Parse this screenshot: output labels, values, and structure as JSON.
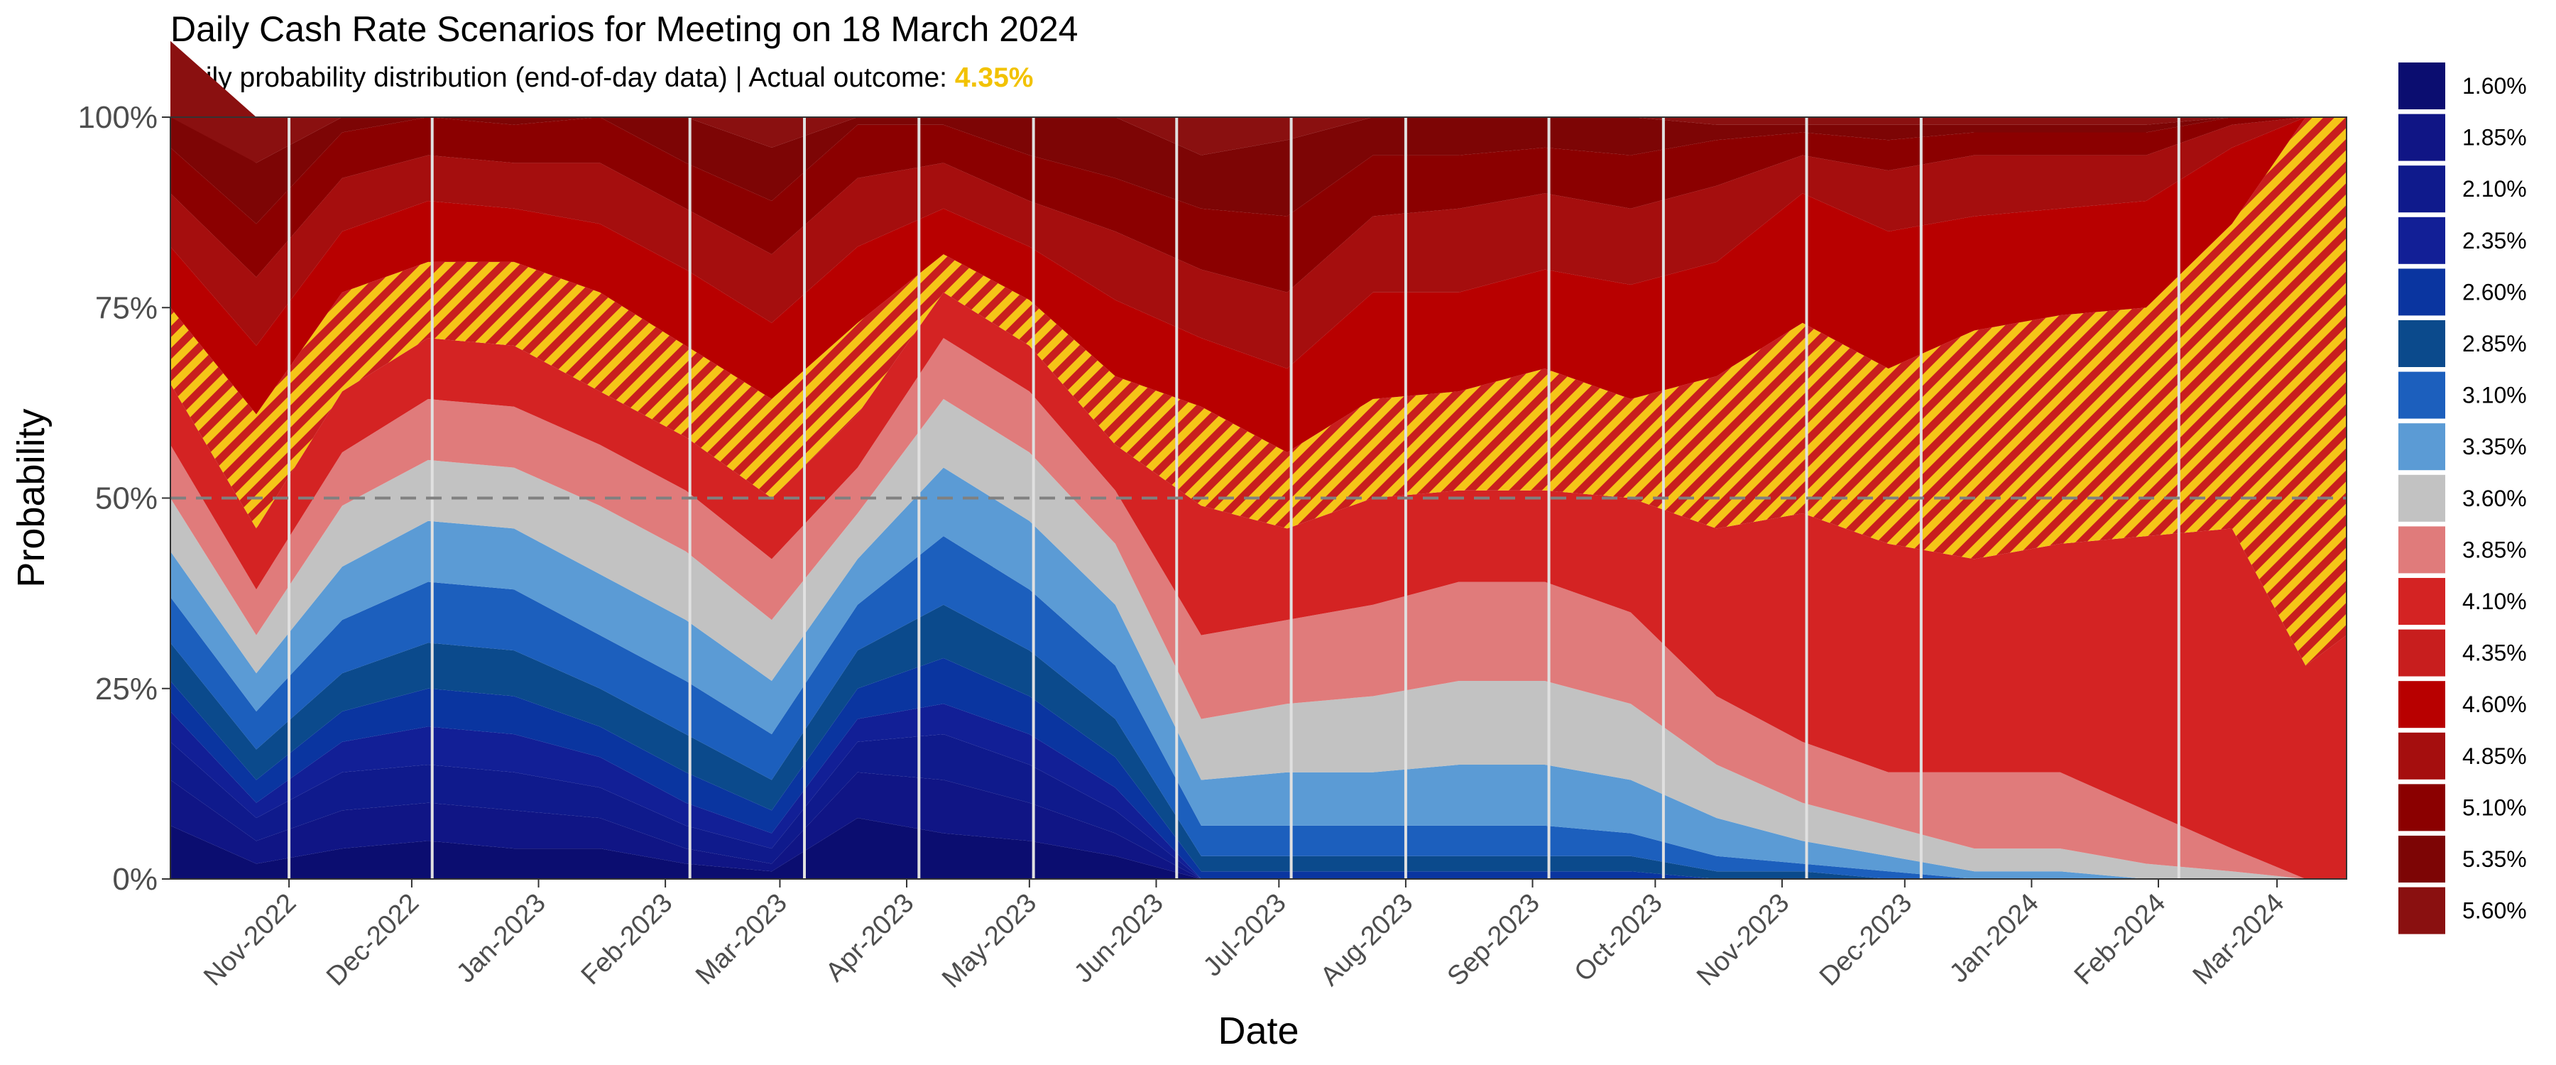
{
  "chart_data": {
    "type": "area",
    "title": "Daily Cash Rate Scenarios for Meeting on 18 March 2024",
    "subtitle_prefix": "Daily probability distribution (end-of-day data) | Actual outcome: ",
    "actual_outcome": "4.35%",
    "xlabel": "Date",
    "ylabel": "Probability",
    "ylim": [
      0,
      1
    ],
    "y_ticks": [
      "0%",
      "25%",
      "50%",
      "75%",
      "100%"
    ],
    "reference_line": 0.5,
    "stacked": true,
    "x_ticks": [
      "Nov-2022",
      "Dec-2022",
      "Jan-2023",
      "Feb-2023",
      "Mar-2023",
      "Apr-2023",
      "May-2023",
      "Jun-2023",
      "Jul-2023",
      "Aug-2023",
      "Sep-2023",
      "Oct-2023",
      "Nov-2023",
      "Dec-2023",
      "Jan-2024",
      "Feb-2024",
      "Mar-2024"
    ],
    "meeting_dates": [
      "2022-11-01",
      "2022-12-06",
      "2023-02-07",
      "2023-03-07",
      "2023-04-04",
      "2023-05-02",
      "2023-06-06",
      "2023-07-04",
      "2023-08-01",
      "2023-09-05",
      "2023-10-03",
      "2023-11-07",
      "2023-12-05",
      "2024-02-06"
    ],
    "legend_position": "right",
    "highlight_pattern": "diagonal gold/red hatching",
    "colors": {
      "outcome_text": "#f2c200",
      "hatch_gold": "#f5c518",
      "reference_line": "#808080",
      "vline": "#e0e0e0"
    },
    "x": [
      "2022-10-03",
      "2022-10-24",
      "2022-11-14",
      "2022-12-05",
      "2022-12-26",
      "2023-01-16",
      "2023-02-06",
      "2023-02-27",
      "2023-03-20",
      "2023-04-10",
      "2023-05-01",
      "2023-05-22",
      "2023-06-12",
      "2023-07-03",
      "2023-07-24",
      "2023-08-14",
      "2023-09-04",
      "2023-09-25",
      "2023-10-16",
      "2023-11-06",
      "2023-11-27",
      "2023-12-18",
      "2024-01-08",
      "2024-01-29",
      "2024-02-19",
      "2024-03-08",
      "2024-03-18"
    ],
    "series": [
      {
        "name": "1.60%",
        "color": "#0b0d70",
        "values": [
          0.07,
          0.02,
          0.04,
          0.05,
          0.04,
          0.04,
          0.02,
          0.01,
          0.08,
          0.06,
          0.05,
          0.03,
          0,
          0,
          0,
          0,
          0,
          0,
          0,
          0,
          0,
          0,
          0,
          0,
          0,
          0,
          0
        ]
      },
      {
        "name": "1.85%",
        "color": "#101585",
        "values": [
          0.06,
          0.03,
          0.05,
          0.05,
          0.05,
          0.04,
          0.02,
          0.01,
          0.06,
          0.07,
          0.05,
          0.03,
          0,
          0,
          0,
          0,
          0,
          0,
          0,
          0,
          0,
          0,
          0,
          0,
          0,
          0,
          0
        ]
      },
      {
        "name": "2.10%",
        "color": "#0f1a8c",
        "values": [
          0.05,
          0.03,
          0.05,
          0.05,
          0.05,
          0.04,
          0.03,
          0.02,
          0.04,
          0.06,
          0.05,
          0.03,
          0,
          0,
          0,
          0,
          0,
          0,
          0,
          0,
          0,
          0,
          0,
          0,
          0,
          0,
          0
        ]
      },
      {
        "name": "2.35%",
        "color": "#121f96",
        "values": [
          0.04,
          0.02,
          0.04,
          0.05,
          0.05,
          0.04,
          0.03,
          0.02,
          0.03,
          0.04,
          0.04,
          0.03,
          0,
          0,
          0,
          0,
          0,
          0,
          0,
          0,
          0,
          0,
          0,
          0,
          0,
          0,
          0
        ]
      },
      {
        "name": "2.60%",
        "color": "#0a35a0",
        "values": [
          0.04,
          0.03,
          0.04,
          0.05,
          0.05,
          0.04,
          0.04,
          0.03,
          0.04,
          0.06,
          0.05,
          0.04,
          0.01,
          0.01,
          0.01,
          0.01,
          0.01,
          0.01,
          0,
          0,
          0,
          0,
          0,
          0,
          0,
          0,
          0
        ]
      },
      {
        "name": "2.85%",
        "color": "#0b4a8c",
        "values": [
          0.05,
          0.04,
          0.05,
          0.06,
          0.06,
          0.05,
          0.05,
          0.04,
          0.05,
          0.07,
          0.06,
          0.05,
          0.02,
          0.02,
          0.02,
          0.02,
          0.02,
          0.02,
          0.01,
          0.01,
          0,
          0,
          0,
          0,
          0,
          0,
          0
        ]
      },
      {
        "name": "3.10%",
        "color": "#1c5fbd",
        "values": [
          0.06,
          0.05,
          0.07,
          0.08,
          0.08,
          0.07,
          0.07,
          0.06,
          0.06,
          0.09,
          0.08,
          0.07,
          0.04,
          0.04,
          0.04,
          0.04,
          0.04,
          0.03,
          0.02,
          0.01,
          0.01,
          0,
          0,
          0,
          0,
          0,
          0
        ]
      },
      {
        "name": "3.35%",
        "color": "#5b9bd5",
        "values": [
          0.06,
          0.05,
          0.07,
          0.08,
          0.08,
          0.08,
          0.08,
          0.07,
          0.06,
          0.09,
          0.09,
          0.08,
          0.06,
          0.07,
          0.07,
          0.08,
          0.08,
          0.07,
          0.05,
          0.03,
          0.02,
          0.01,
          0.01,
          0,
          0,
          0,
          0
        ]
      },
      {
        "name": "3.60%",
        "color": "#c2c2c2",
        "values": [
          0.07,
          0.05,
          0.08,
          0.08,
          0.08,
          0.09,
          0.09,
          0.08,
          0.06,
          0.09,
          0.09,
          0.08,
          0.08,
          0.09,
          0.1,
          0.11,
          0.11,
          0.1,
          0.07,
          0.05,
          0.04,
          0.03,
          0.03,
          0.02,
          0.01,
          0,
          0
        ]
      },
      {
        "name": "3.85%",
        "color": "#e07b7b",
        "values": [
          0.07,
          0.06,
          0.07,
          0.08,
          0.08,
          0.08,
          0.08,
          0.08,
          0.06,
          0.08,
          0.08,
          0.07,
          0.11,
          0.11,
          0.12,
          0.13,
          0.13,
          0.12,
          0.09,
          0.08,
          0.07,
          0.1,
          0.1,
          0.07,
          0.03,
          0,
          0
        ]
      },
      {
        "name": "4.10%",
        "color": "#d42323",
        "values": [
          0.08,
          0.08,
          0.08,
          0.08,
          0.08,
          0.07,
          0.07,
          0.08,
          0.07,
          0.06,
          0.06,
          0.06,
          0.17,
          0.12,
          0.14,
          0.12,
          0.12,
          0.15,
          0.22,
          0.3,
          0.3,
          0.28,
          0.3,
          0.36,
          0.42,
          0.28,
          0.32
        ]
      },
      {
        "name": "4.35%",
        "color": "#c81e1e",
        "values": [
          0.1,
          0.15,
          0.13,
          0.1,
          0.11,
          0.13,
          0.12,
          0.13,
          0.12,
          0.05,
          0.06,
          0.09,
          0.13,
          0.1,
          0.13,
          0.13,
          0.16,
          0.13,
          0.2,
          0.25,
          0.23,
          0.3,
          0.3,
          0.3,
          0.4,
          0.72,
          0.68
        ]
      },
      {
        "name": "4.60%",
        "color": "#b80000",
        "values": [
          0.08,
          0.09,
          0.08,
          0.08,
          0.07,
          0.09,
          0.1,
          0.1,
          0.1,
          0.06,
          0.07,
          0.1,
          0.09,
          0.11,
          0.14,
          0.13,
          0.13,
          0.15,
          0.15,
          0.17,
          0.18,
          0.15,
          0.14,
          0.14,
          0.1,
          0,
          0
        ]
      },
      {
        "name": "4.85%",
        "color": "#a50e0e",
        "values": [
          0.07,
          0.09,
          0.07,
          0.06,
          0.06,
          0.08,
          0.08,
          0.09,
          0.09,
          0.06,
          0.06,
          0.09,
          0.09,
          0.1,
          0.1,
          0.11,
          0.1,
          0.1,
          0.1,
          0.05,
          0.08,
          0.08,
          0.07,
          0.06,
          0.03,
          0,
          0
        ]
      },
      {
        "name": "5.10%",
        "color": "#8b0000",
        "values": [
          0.06,
          0.07,
          0.06,
          0.05,
          0.05,
          0.06,
          0.06,
          0.07,
          0.07,
          0.05,
          0.06,
          0.07,
          0.08,
          0.1,
          0.08,
          0.07,
          0.06,
          0.07,
          0.06,
          0.03,
          0.04,
          0.03,
          0.03,
          0.03,
          0.01,
          0,
          0
        ]
      },
      {
        "name": "5.35%",
        "color": "#7d0505",
        "values": [
          0.05,
          0.08,
          0.06,
          0.05,
          0.05,
          0.06,
          0.07,
          0.07,
          0.06,
          0.05,
          0.06,
          0.08,
          0.07,
          0.1,
          0.07,
          0.07,
          0.05,
          0.07,
          0.02,
          0.01,
          0.02,
          0.01,
          0.01,
          0.01,
          0,
          0,
          0
        ]
      },
      {
        "name": "5.60%",
        "color": "#8a1010",
        "values": [
          0.09,
          0.16,
          0.06,
          0.05,
          0.06,
          0.04,
          0.08,
          0.13,
          0.05,
          0.06,
          0.05,
          0.1,
          0.05,
          0.1,
          0.08,
          0.08,
          0.09,
          0.08,
          0.01,
          0.01,
          0.01,
          0.01,
          0.01,
          0.01,
          0,
          0,
          0
        ]
      }
    ]
  }
}
